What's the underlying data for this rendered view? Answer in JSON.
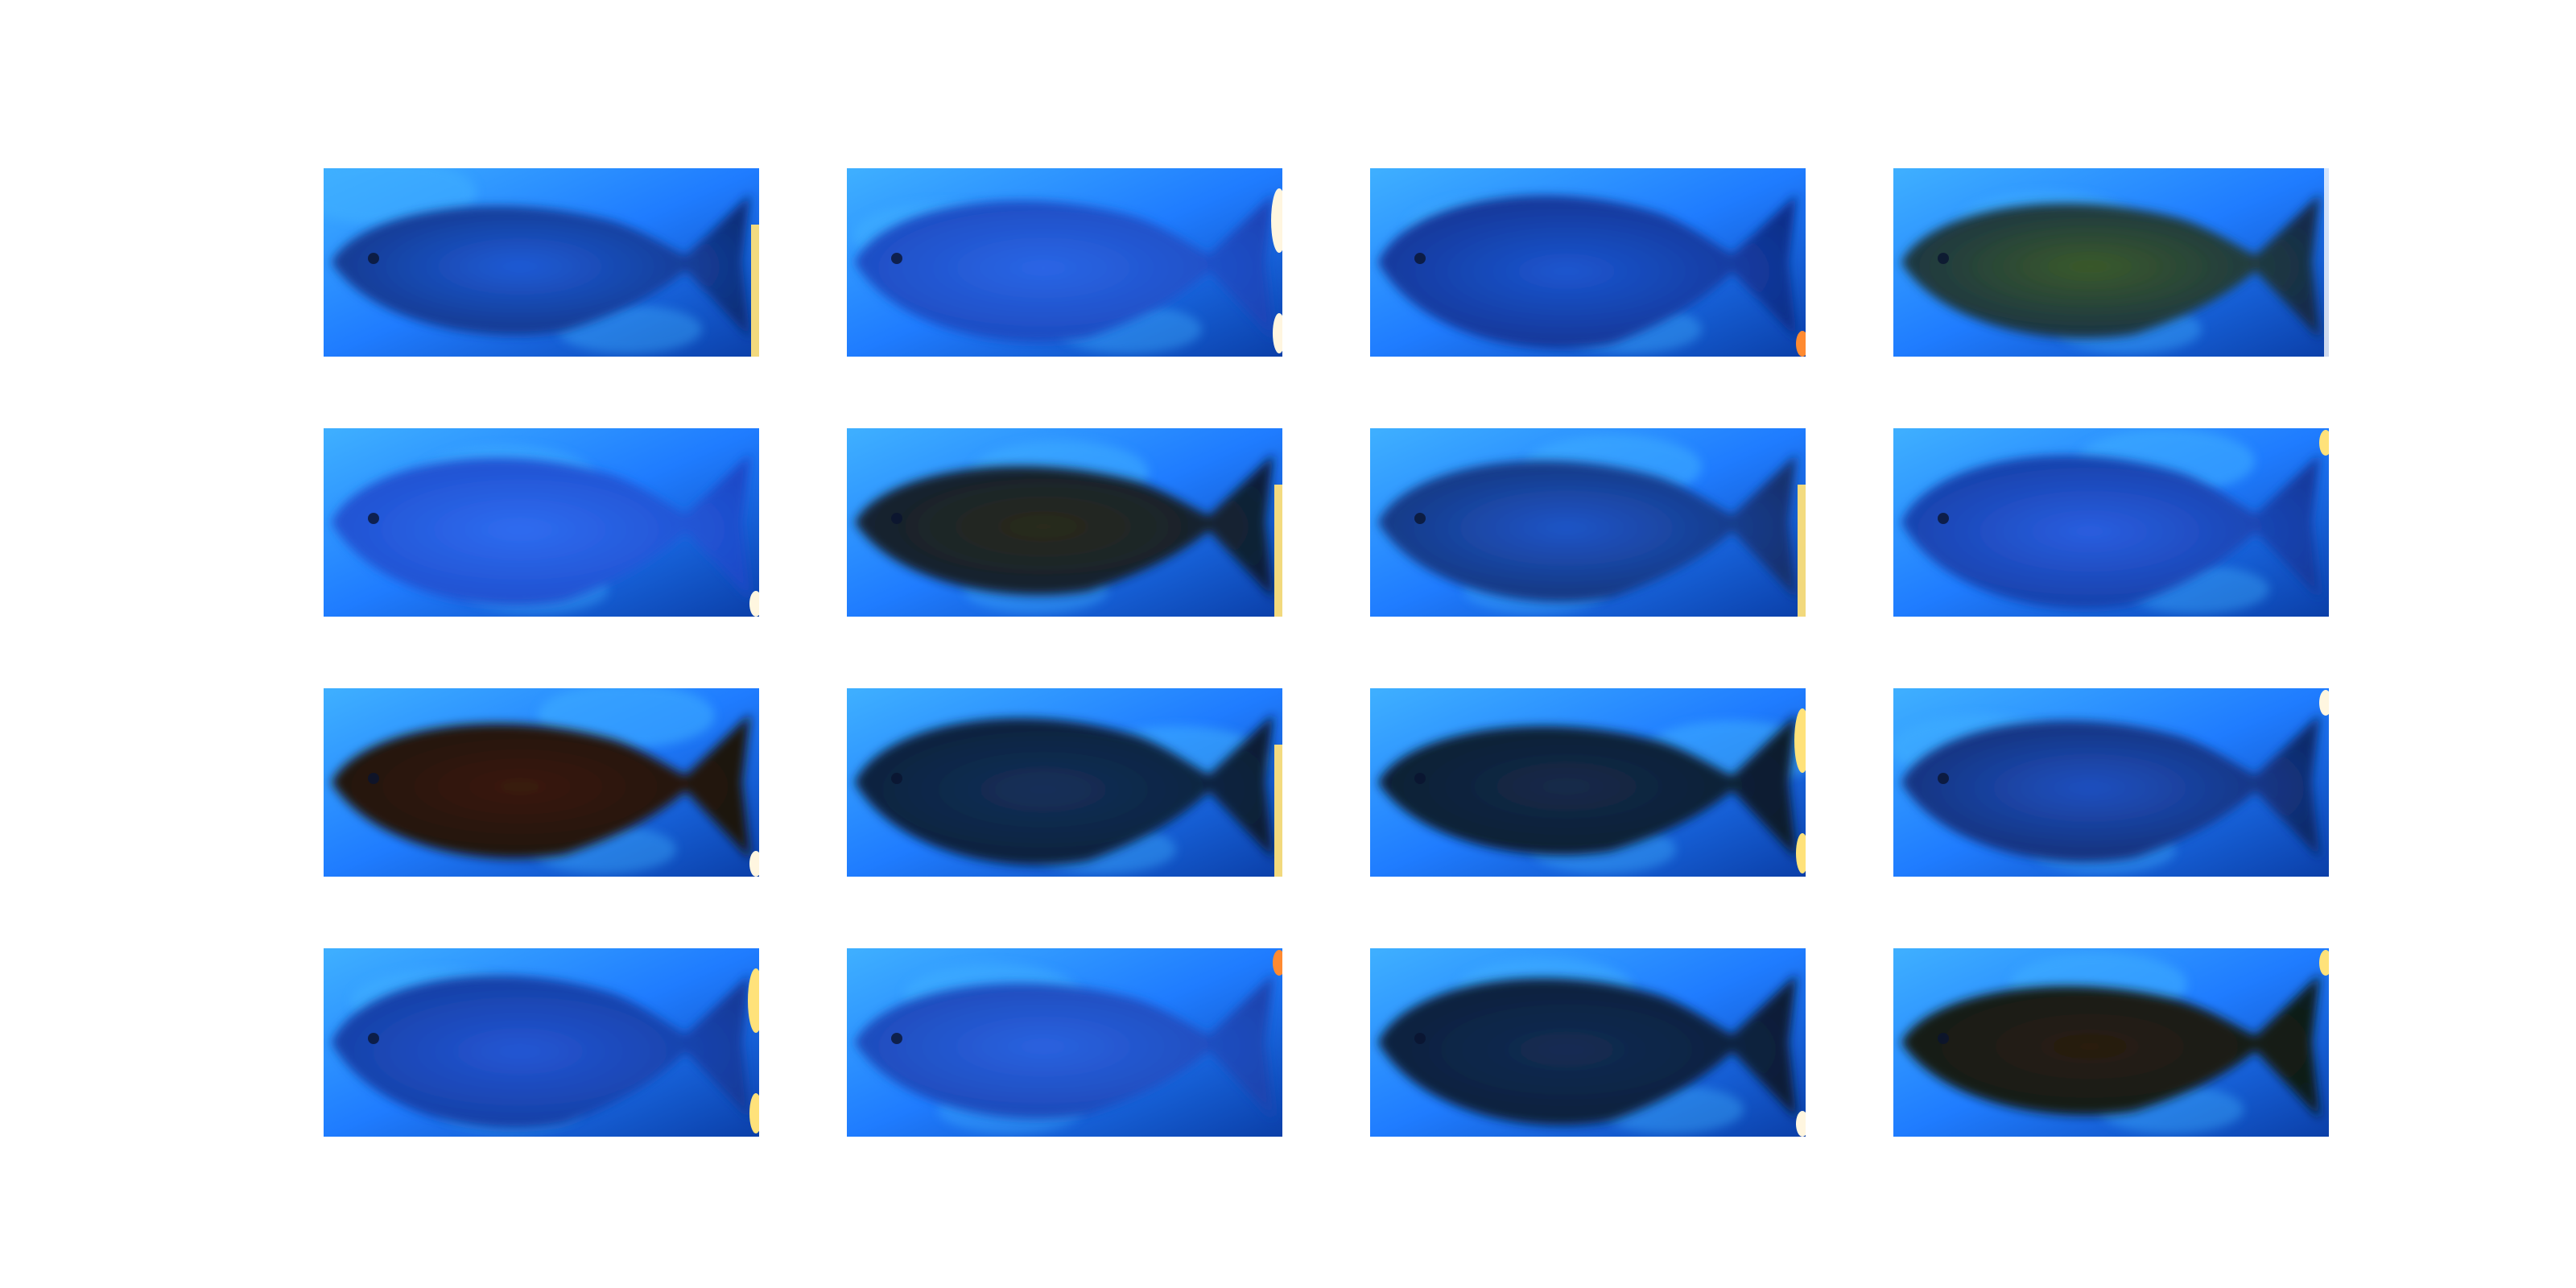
{
  "figure": {
    "rows": 4,
    "cols": 4,
    "colors": {
      "background": "#ffffff",
      "water_light": "#1f7cff",
      "water_bright": "#3fb0ff",
      "water_deep": "#0b3fa8"
    },
    "tiles": [
      {
        "subject": "fish",
        "body_color": "#0e2f7a",
        "highlight": "#1f5bd6",
        "artifact_color": "#ffe27a",
        "artifact": "edge-bar"
      },
      {
        "subject": "fish",
        "body_color": "#1a45b8",
        "highlight": "#2a66e6",
        "artifact_color": "#fff6e0",
        "artifact": "edge-blobs"
      },
      {
        "subject": "fish",
        "body_color": "#0f2f8a",
        "highlight": "#1c56d0",
        "artifact_color": "#ff8a30",
        "artifact": "corner-dot"
      },
      {
        "subject": "fish",
        "body_color": "#132a4a",
        "highlight": "#3a5a2a",
        "artifact_color": "#ffffff",
        "artifact": "edge-line"
      },
      {
        "subject": "fish",
        "body_color": "#1c4ac8",
        "highlight": "#2f6cf0",
        "artifact_color": "#fff6e0",
        "artifact": "corner-dot"
      },
      {
        "subject": "fish",
        "body_color": "#0c1f3a",
        "highlight": "#2a2a1a",
        "artifact_color": "#ffe27a",
        "artifact": "edge-bar"
      },
      {
        "subject": "fish",
        "body_color": "#12306e",
        "highlight": "#1f55c8",
        "artifact_color": "#ffe27a",
        "artifact": "edge-bar"
      },
      {
        "subject": "fish",
        "body_color": "#123a9e",
        "highlight": "#2a5ee0",
        "artifact_color": "#ffe27a",
        "artifact": "corner-dot"
      },
      {
        "subject": "fish",
        "body_color": "#1a1410",
        "highlight": "#3a1a10",
        "artifact_color": "#fff6e0",
        "artifact": "corner-dot"
      },
      {
        "subject": "fish",
        "body_color": "#0a1e34",
        "highlight": "#14305a",
        "artifact_color": "#ffe27a",
        "artifact": "edge-bar"
      },
      {
        "subject": "fish",
        "body_color": "#0b1b2c",
        "highlight": "#142a4a",
        "artifact_color": "#ffe27a",
        "artifact": "edge-blobs"
      },
      {
        "subject": "fish",
        "body_color": "#0f2a6a",
        "highlight": "#2050c0",
        "artifact_color": "#fff6e0",
        "artifact": "corner-dot"
      },
      {
        "subject": "fish",
        "body_color": "#123a9a",
        "highlight": "#2456d4",
        "artifact_color": "#ffe27a",
        "artifact": "edge-blobs"
      },
      {
        "subject": "fish",
        "body_color": "#1a44b0",
        "highlight": "#2a62e0",
        "artifact_color": "#ff8a30",
        "artifact": "corner-dot"
      },
      {
        "subject": "fish",
        "body_color": "#0b1d36",
        "highlight": "#132c54",
        "artifact_color": "#fff6e0",
        "artifact": "corner-dot"
      },
      {
        "subject": "fish",
        "body_color": "#0e1a1a",
        "highlight": "#2a1a10",
        "artifact_color": "#ffe27a",
        "artifact": "corner-dot"
      }
    ]
  }
}
